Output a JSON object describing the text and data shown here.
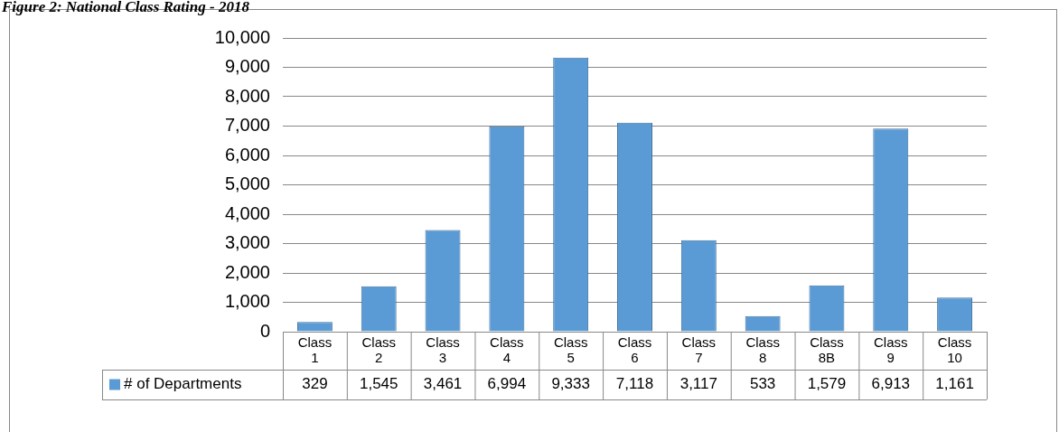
{
  "chart_data": {
    "type": "bar",
    "title": "Figure 2: National Class Rating - 2018",
    "categories": [
      "Class 1",
      "Class 2",
      "Class 3",
      "Class 4",
      "Class 5",
      "Class 6",
      "Class 7",
      "Class 8",
      "Class 8B",
      "Class 9",
      "Class 10"
    ],
    "series": [
      {
        "name": "# of Departments",
        "color": "#5b9bd5",
        "values": [
          329,
          1545,
          3461,
          6994,
          9333,
          7118,
          3117,
          533,
          1579,
          6913,
          1161
        ],
        "value_labels": [
          "329",
          "1,545",
          "3,461",
          "6,994",
          "9,333",
          "7,118",
          "3,117",
          "533",
          "1,579",
          "6,913",
          "1,161"
        ]
      }
    ],
    "ylim": [
      0,
      10000
    ],
    "yticks": [
      {
        "value": 0,
        "label": "0"
      },
      {
        "value": 1000,
        "label": "1,000"
      },
      {
        "value": 2000,
        "label": "2,000"
      },
      {
        "value": 3000,
        "label": "3,000"
      },
      {
        "value": 4000,
        "label": "4,000"
      },
      {
        "value": 5000,
        "label": "5,000"
      },
      {
        "value": 6000,
        "label": "6,000"
      },
      {
        "value": 7000,
        "label": "7,000"
      },
      {
        "value": 8000,
        "label": "8,000"
      },
      {
        "value": 9000,
        "label": "9,000"
      },
      {
        "value": 10000,
        "label": "10,000"
      }
    ],
    "grid": "y",
    "legend": "bottom left"
  }
}
